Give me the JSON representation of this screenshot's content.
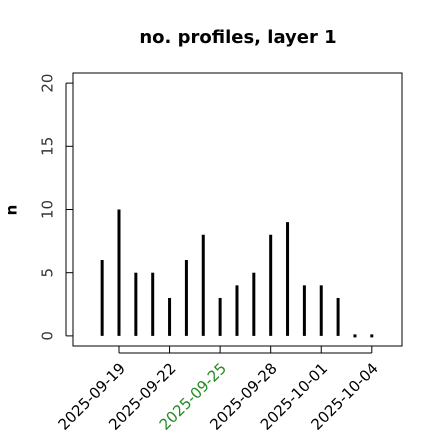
{
  "chart_data": {
    "type": "bar",
    "title": "no. profiles, layer 1",
    "y_label": "n",
    "x": [
      "2025-09-18",
      "2025-09-19",
      "2025-09-20",
      "2025-09-21",
      "2025-09-22",
      "2025-09-23",
      "2025-09-24",
      "2025-09-25",
      "2025-09-26",
      "2025-09-27",
      "2025-09-28",
      "2025-09-29",
      "2025-09-30",
      "2025-10-01",
      "2025-10-02",
      "2025-10-03",
      "2025-10-04"
    ],
    "values": [
      6,
      10,
      5,
      5,
      3,
      6,
      8,
      3,
      4,
      5,
      8,
      9,
      4,
      4,
      3,
      0,
      0
    ],
    "color": "#000000",
    "xlim": [
      "2025-09-16T06:30Z",
      "2025-10-05T19:00Z"
    ],
    "xticks": [
      "2025-09-19",
      "2025-09-22",
      "2025-09-25",
      "2025-09-28",
      "2025-10-01",
      "2025-10-04"
    ],
    "xtick_colors": [
      "#000000",
      "#000000",
      "#228b22",
      "#000000",
      "#000000",
      "#000000"
    ],
    "ylim": [
      -0.8,
      20.8
    ],
    "yticks": [
      0,
      5,
      10,
      15,
      20
    ]
  }
}
